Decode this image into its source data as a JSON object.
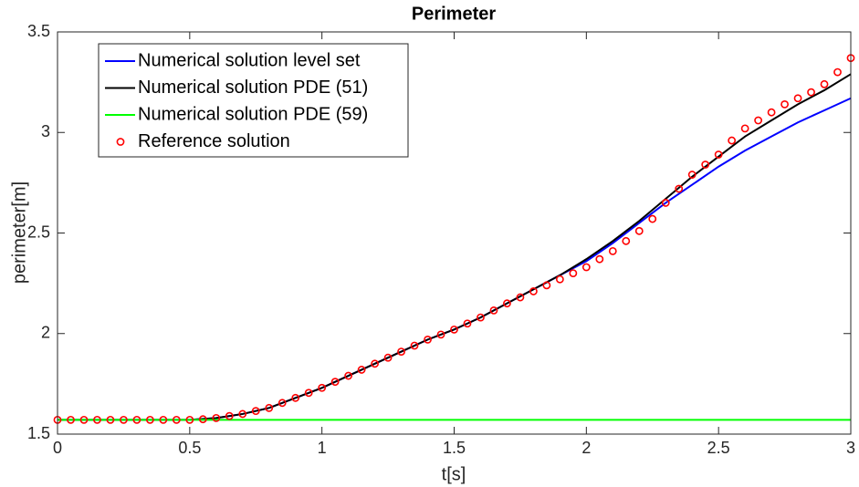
{
  "chart_data": {
    "type": "line",
    "title": "Perimeter",
    "x_label": "t[s]",
    "y_label": "perimeter[m]",
    "xlim": [
      0,
      3
    ],
    "ylim": [
      1.5,
      3.5
    ],
    "xticks": [
      0,
      0.5,
      1,
      1.5,
      2,
      2.5,
      3
    ],
    "yticks": [
      1.5,
      2,
      2.5,
      3,
      3.5
    ],
    "legend": "upper left",
    "series": [
      {
        "name": "Numerical solution level set",
        "color": "#0000ff",
        "style": "line",
        "x": [
          0,
          0.1,
          0.2,
          0.3,
          0.4,
          0.5,
          0.6,
          0.7,
          0.8,
          0.9,
          1,
          1.1,
          1.2,
          1.3,
          1.4,
          1.5,
          1.6,
          1.7,
          1.8,
          1.9,
          2,
          2.1,
          2.2,
          2.3,
          2.4,
          2.5,
          2.6,
          2.7,
          2.8,
          2.9,
          3
        ],
        "values": [
          1.571,
          1.571,
          1.571,
          1.571,
          1.571,
          1.571,
          1.58,
          1.6,
          1.63,
          1.68,
          1.73,
          1.79,
          1.85,
          1.91,
          1.97,
          2.02,
          2.08,
          2.15,
          2.22,
          2.29,
          2.36,
          2.45,
          2.55,
          2.65,
          2.74,
          2.83,
          2.91,
          2.98,
          3.05,
          3.11,
          3.17
        ]
      },
      {
        "name": "Numerical solution PDE (51)",
        "color": "#000000",
        "style": "line",
        "x": [
          0,
          0.1,
          0.2,
          0.3,
          0.4,
          0.5,
          0.6,
          0.7,
          0.8,
          0.9,
          1,
          1.1,
          1.2,
          1.3,
          1.4,
          1.5,
          1.6,
          1.7,
          1.8,
          1.9,
          2,
          2.1,
          2.2,
          2.3,
          2.4,
          2.5,
          2.6,
          2.7,
          2.8,
          2.9,
          3
        ],
        "values": [
          1.571,
          1.571,
          1.571,
          1.571,
          1.571,
          1.571,
          1.58,
          1.6,
          1.63,
          1.68,
          1.73,
          1.79,
          1.85,
          1.91,
          1.97,
          2.02,
          2.08,
          2.15,
          2.22,
          2.29,
          2.37,
          2.46,
          2.56,
          2.67,
          2.78,
          2.88,
          2.98,
          3.06,
          3.14,
          3.21,
          3.29
        ]
      },
      {
        "name": "Numerical solution PDE (59)",
        "color": "#00ff00",
        "style": "line",
        "x": [
          0,
          0.1,
          0.2,
          0.3,
          0.4,
          0.5,
          0.6,
          0.7,
          0.8,
          0.9,
          1,
          1.1,
          1.2,
          1.3,
          1.4,
          1.5,
          1.6,
          1.7,
          1.8,
          1.9,
          2,
          2.1,
          2.2,
          2.3,
          2.4,
          2.5,
          2.6,
          2.7,
          2.8,
          2.9,
          3
        ],
        "values": [
          1.571,
          1.571,
          1.571,
          1.571,
          1.571,
          1.571,
          1.571,
          1.571,
          1.571,
          1.571,
          1.571,
          1.571,
          1.571,
          1.571,
          1.571,
          1.571,
          1.571,
          1.571,
          1.571,
          1.571,
          1.571,
          1.571,
          1.571,
          1.571,
          1.571,
          1.571,
          1.571,
          1.571,
          1.571,
          1.571,
          1.571
        ]
      },
      {
        "name": "Reference solution",
        "color": "#ff0000",
        "style": "marker",
        "x": [
          0,
          0.05,
          0.1,
          0.15,
          0.2,
          0.25,
          0.3,
          0.35,
          0.4,
          0.45,
          0.5,
          0.55,
          0.6,
          0.65,
          0.7,
          0.75,
          0.8,
          0.85,
          0.9,
          0.95,
          1,
          1.05,
          1.1,
          1.15,
          1.2,
          1.25,
          1.3,
          1.35,
          1.4,
          1.45,
          1.5,
          1.55,
          1.6,
          1.65,
          1.7,
          1.75,
          1.8,
          1.85,
          1.9,
          1.95,
          2,
          2.05,
          2.1,
          2.15,
          2.2,
          2.25,
          2.3,
          2.35,
          2.4,
          2.45,
          2.5,
          2.55,
          2.6,
          2.65,
          2.7,
          2.75,
          2.8,
          2.85,
          2.9,
          2.95,
          3
        ],
        "values": [
          1.571,
          1.571,
          1.571,
          1.571,
          1.571,
          1.571,
          1.571,
          1.571,
          1.571,
          1.571,
          1.571,
          1.574,
          1.58,
          1.59,
          1.6,
          1.615,
          1.63,
          1.655,
          1.68,
          1.705,
          1.73,
          1.76,
          1.79,
          1.82,
          1.85,
          1.88,
          1.91,
          1.94,
          1.97,
          1.995,
          2.02,
          2.05,
          2.08,
          2.115,
          2.15,
          2.18,
          2.21,
          2.24,
          2.27,
          2.3,
          2.33,
          2.37,
          2.41,
          2.46,
          2.51,
          2.57,
          2.65,
          2.72,
          2.79,
          2.84,
          2.89,
          2.96,
          3.02,
          3.06,
          3.1,
          3.14,
          3.17,
          3.2,
          3.24,
          3.3,
          3.37
        ]
      }
    ]
  }
}
